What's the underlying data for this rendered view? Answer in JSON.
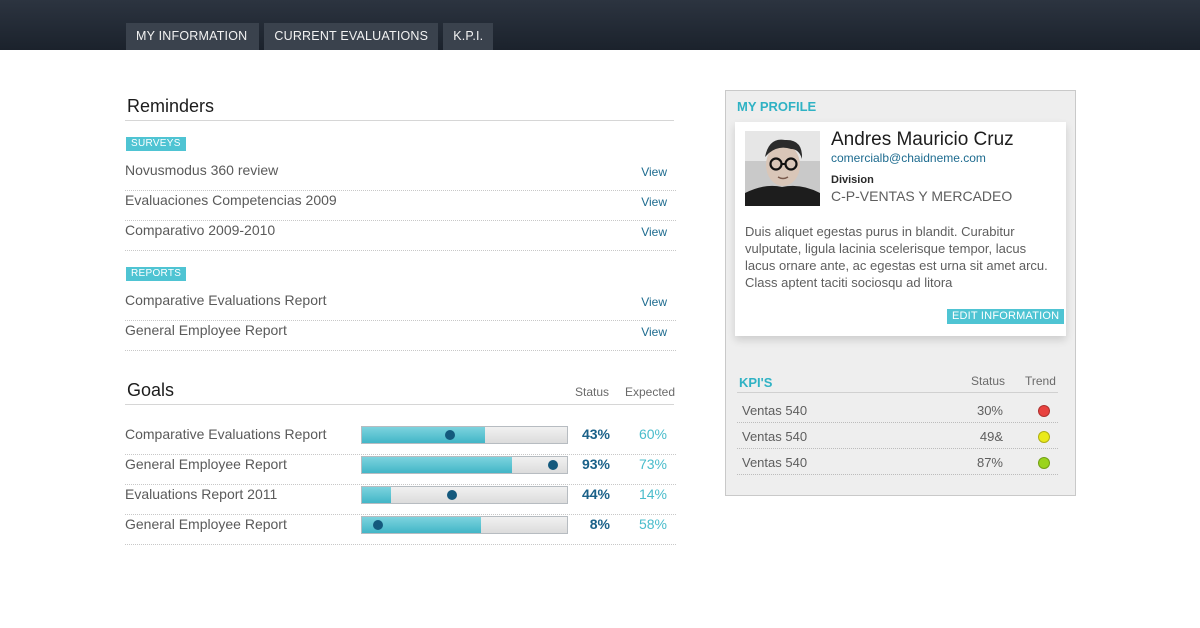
{
  "nav": {
    "tabs": [
      "MY INFORMATION",
      "CURRENT EVALUATIONS",
      "K.P.I."
    ]
  },
  "reminders": {
    "title": "Reminders",
    "surveys_badge": "SURVEYS",
    "surveys": [
      {
        "label": "Novusmodus 360 review",
        "action": "View"
      },
      {
        "label": "Evaluaciones Competencias 2009",
        "action": "View"
      },
      {
        "label": "Comparativo 2009-2010",
        "action": "View"
      }
    ],
    "reports_badge": "REPORTS",
    "reports": [
      {
        "label": "Comparative Evaluations Report",
        "action": "View"
      },
      {
        "label": "General Employee Report",
        "action": "View"
      }
    ]
  },
  "goals": {
    "title": "Goals",
    "status_header": "Status",
    "expected_header": "Expected",
    "items": [
      {
        "label": "Comparative Evaluations Report",
        "status": "43%",
        "expected": "60%",
        "status_pct": 43,
        "expected_pct": 60
      },
      {
        "label": "General Employee Report",
        "status": "93%",
        "expected": "73%",
        "status_pct": 93,
        "expected_pct": 73
      },
      {
        "label": "Evaluations Report 2011",
        "status": "44%",
        "expected": "14%",
        "status_pct": 44,
        "expected_pct": 14
      },
      {
        "label": "General Employee Report",
        "status": "8%",
        "expected": "58%",
        "status_pct": 8,
        "expected_pct": 58
      }
    ]
  },
  "profile": {
    "title": "MY PROFILE",
    "name": "Andres Mauricio Cruz",
    "email": "comercialb@chaidneme.com",
    "division_label": "Division",
    "division": "C-P-VENTAS Y MERCADEO",
    "bio": "Duis aliquet egestas purus in blandit. Curabitur vulputate, ligula lacinia scelerisque tempor, lacus lacus ornare ante, ac egestas est urna sit amet arcu. Class aptent taciti sociosqu ad litora",
    "edit_label": "EDIT INFORMATION"
  },
  "kpis": {
    "title": "KPI'S",
    "status_header": "Status",
    "trend_header": "Trend",
    "items": [
      {
        "label": "Ventas 540",
        "status": "30%",
        "trend_color": "#e8423f"
      },
      {
        "label": "Ventas 540",
        "status": "49&",
        "trend_color": "#eaea1a"
      },
      {
        "label": "Ventas 540",
        "status": "87%",
        "trend_color": "#9ad41c"
      }
    ]
  },
  "colors": {
    "accent": "#4fc4d3",
    "navy": "#1a6189",
    "topbar": "#1f2630"
  }
}
